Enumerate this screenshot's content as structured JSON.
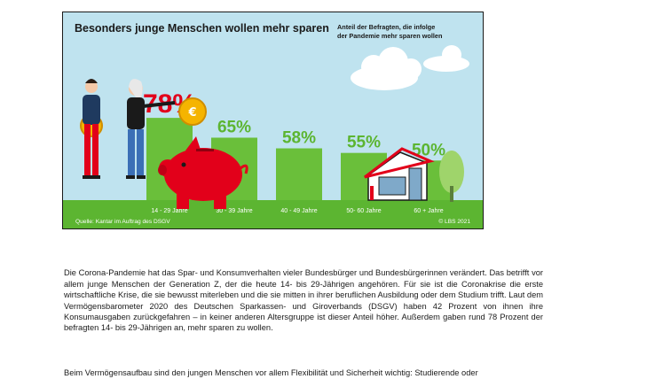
{
  "chart_data": {
    "type": "bar",
    "title": "Besonders junge Menschen wollen mehr sparen",
    "subtitle_lines": [
      "Anteil der Befragten, die infolge",
      "der Pandemie mehr sparen wollen"
    ],
    "categories": [
      "14 - 29 Jahre",
      "30 - 39 Jahre",
      "40 - 49 Jahre",
      "50- 60 Jahre",
      "60 + Jahre"
    ],
    "values": [
      78,
      65,
      58,
      55,
      50
    ],
    "value_labels": [
      "78%",
      "65%",
      "58%",
      "55%",
      "50%"
    ],
    "highlight_index": 0,
    "ylim": [
      0,
      100
    ],
    "colors": {
      "bar": "#6abf3a",
      "highlight_label": "#e2001a",
      "label": "#5cb531",
      "background": "#bfe3ef"
    },
    "source": "Quelle: Kantar im Auftrag des DSGV",
    "copyright": "© LBS 2021",
    "decorations": [
      "person-icon",
      "coin-icon",
      "piggy-bank-icon",
      "cloud-icon",
      "house-icon",
      "tree-icon"
    ]
  },
  "text": {
    "paragraph1": "Die Corona-Pandemie hat das Spar- und Konsumverhalten vieler Bundesbürger und Bundesbürgerinnen verändert. Das betrifft vor allem junge Menschen der Generation Z, der die heute 14- bis 29-Jährigen angehören. Für sie ist die Coronakrise die erste wirtschaftliche Krise, die sie bewusst miterleben und die sie mitten in ihrer beruflichen Ausbildung oder dem Studium trifft. Laut dem Vermögensbarometer 2020 des Deutschen Sparkassen- und Giroverbands (DSGV) haben 42 Prozent von ihnen ihre Konsumausgaben zurückgefahren – in keiner anderen Altersgruppe ist dieser Anteil höher. Außerdem gaben rund 78 Prozent der befragten 14- bis 29-Jährigen an, mehr sparen zu wollen.",
    "paragraph2": "Beim Vermögensaufbau sind den jungen Menschen vor allem Flexibilität und Sicherheit wichtig: Studierende oder"
  }
}
